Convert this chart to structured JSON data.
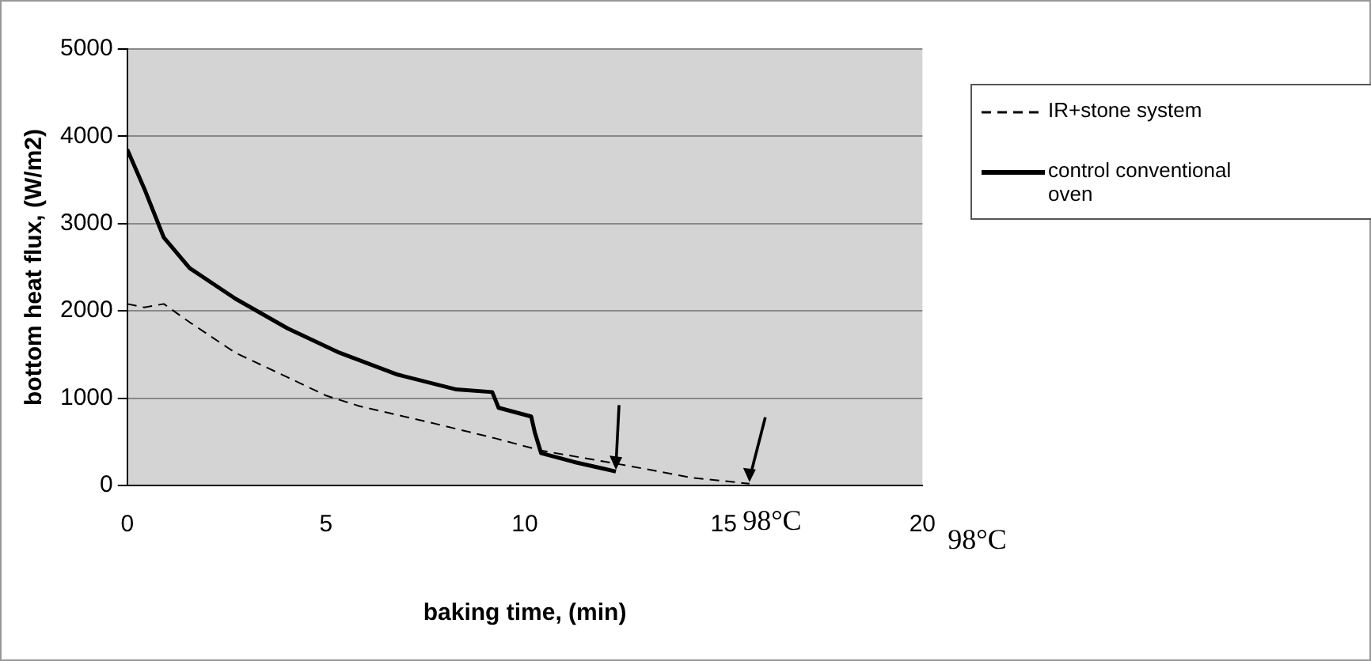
{
  "chart_data": {
    "type": "line",
    "xlabel": "baking time, (min)",
    "ylabel": "bottom heat flux, (W/m2)",
    "xlim": [
      0,
      20
    ],
    "xticks": [
      0,
      5,
      10,
      15,
      20
    ],
    "ylim": [
      0,
      5000
    ],
    "yticks": [
      0,
      1000,
      2000,
      3000,
      4000,
      5000
    ],
    "grid": "y",
    "legend": "right",
    "series": [
      {
        "name": "IR+stone system",
        "color": "#000000",
        "line_style": "dashed",
        "x": [
          0,
          0.43,
          0.92,
          1.57,
          2.72,
          4.03,
          5.0,
          5.83,
          7.63,
          9.26,
          10.41,
          12.55,
          14.19,
          15.65
        ],
        "values": [
          2080,
          2040,
          2080,
          1870,
          1520,
          1240,
          1030,
          910,
          720,
          540,
          400,
          230,
          90,
          20
        ]
      },
      {
        "name": "control conventional oven",
        "color": "#000000",
        "line_style": "solid",
        "x": [
          0,
          0.43,
          0.92,
          1.57,
          2.72,
          4.03,
          5.34,
          6.8,
          8.28,
          9.18,
          9.34,
          10.16,
          10.25,
          10.41,
          11.23,
          12.29
        ],
        "values": [
          3850,
          3400,
          2840,
          2490,
          2140,
          1800,
          1520,
          1270,
          1100,
          1070,
          890,
          790,
          610,
          370,
          270,
          160
        ]
      }
    ],
    "annotations": [
      "98°C",
      "98°C"
    ]
  }
}
